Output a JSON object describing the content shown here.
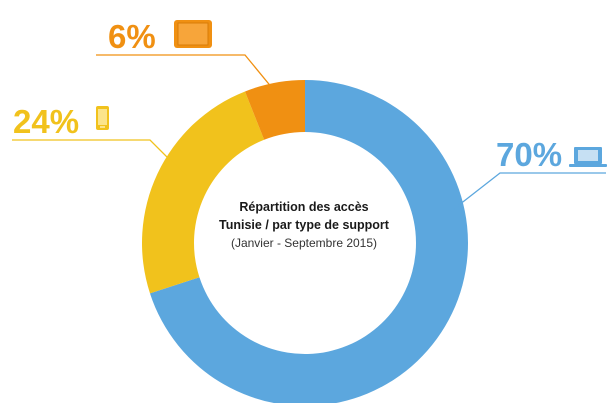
{
  "chart_data": {
    "type": "donut",
    "title_lines": [
      "Répartition des accès",
      "Tunisie / par type de support"
    ],
    "subtitle": "(Janvier - Septembre 2015)",
    "slices": [
      {
        "label": "70%",
        "value": 70,
        "color": "#5ca7de",
        "icon": "laptop-icon"
      },
      {
        "label": "24%",
        "value": 24,
        "color": "#f1c21c",
        "icon": "smartphone-icon"
      },
      {
        "label": "6%",
        "value": 6,
        "color": "#f09012",
        "icon": "tablet-icon"
      }
    ]
  }
}
